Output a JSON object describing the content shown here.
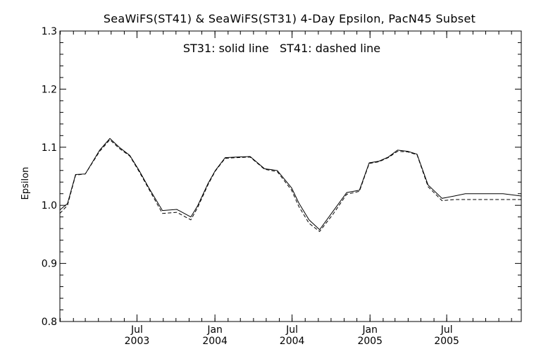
{
  "chart_data": {
    "type": "line",
    "title": "SeaWiFS(ST41) & SeaWiFS(ST31) 4-Day Epsilon, PacN45 Subset",
    "annotation": "ST31: solid line   ST41: dashed line",
    "xlabel": "",
    "ylabel": "Epsilon",
    "ylim": [
      0.8,
      1.3
    ],
    "yticks": [
      0.8,
      0.9,
      1.0,
      1.1,
      1.2,
      1.3
    ],
    "ytick_labels": [
      "0.8",
      "0.9",
      "1.0",
      "1.1",
      "1.2",
      "1.3"
    ],
    "xlim": [
      "2002-12-31",
      "2005-12-24"
    ],
    "xticks": [
      {
        "date": "2003-07-01",
        "month": "Jul",
        "year": "2003"
      },
      {
        "date": "2004-01-01",
        "month": "Jan",
        "year": "2004"
      },
      {
        "date": "2004-07-01",
        "month": "Jul",
        "year": "2004"
      },
      {
        "date": "2005-01-01",
        "month": "Jan",
        "year": "2005"
      },
      {
        "date": "2005-07-01",
        "month": "Jul",
        "year": "2005"
      }
    ],
    "grid": false,
    "colors": {
      "line": "#000000",
      "axis": "#000000",
      "background": "#ffffff"
    },
    "series": [
      {
        "name": "ST31",
        "style": "solid",
        "x": [
          "2002-12-31",
          "2003-01-18",
          "2003-02-06",
          "2003-03-01",
          "2003-04-04",
          "2003-04-28",
          "2003-05-20",
          "2003-06-14",
          "2003-07-06",
          "2003-07-29",
          "2003-08-30",
          "2003-10-03",
          "2003-11-05",
          "2003-11-21",
          "2003-12-16",
          "2004-01-02",
          "2004-01-25",
          "2004-02-21",
          "2004-03-24",
          "2004-04-27",
          "2004-05-27",
          "2004-06-30",
          "2004-07-17",
          "2004-08-10",
          "2004-09-04",
          "2004-10-06",
          "2004-11-07",
          "2004-12-07",
          "2004-12-30",
          "2005-01-22",
          "2005-02-13",
          "2005-03-07",
          "2005-03-31",
          "2005-04-22",
          "2005-05-18",
          "2005-06-20",
          "2005-07-19",
          "2005-08-14",
          "2005-09-16",
          "2005-10-13",
          "2005-11-11",
          "2005-12-24"
        ],
        "y": [
          0.992,
          1.003,
          1.053,
          1.054,
          1.095,
          1.115,
          1.1,
          1.086,
          1.06,
          1.03,
          0.991,
          0.993,
          0.98,
          0.999,
          1.038,
          1.06,
          1.082,
          1.083,
          1.084,
          1.063,
          1.06,
          1.03,
          1.004,
          0.975,
          0.958,
          0.99,
          1.022,
          1.026,
          1.073,
          1.076,
          1.083,
          1.095,
          1.093,
          1.088,
          1.035,
          1.012,
          1.016,
          1.02,
          1.02,
          1.02,
          1.02,
          1.016
        ]
      },
      {
        "name": "ST41",
        "style": "dashed",
        "x": [
          "2002-12-31",
          "2003-01-18",
          "2003-02-06",
          "2003-03-01",
          "2003-04-04",
          "2003-04-28",
          "2003-05-20",
          "2003-06-14",
          "2003-07-06",
          "2003-07-29",
          "2003-08-30",
          "2003-10-03",
          "2003-11-05",
          "2003-11-21",
          "2003-12-16",
          "2004-01-02",
          "2004-01-25",
          "2004-02-21",
          "2004-03-24",
          "2004-04-27",
          "2004-05-27",
          "2004-06-30",
          "2004-07-17",
          "2004-08-10",
          "2004-09-04",
          "2004-10-06",
          "2004-11-07",
          "2004-12-07",
          "2004-12-30",
          "2005-01-22",
          "2005-02-13",
          "2005-03-07",
          "2005-03-31",
          "2005-04-22",
          "2005-05-18",
          "2005-06-20",
          "2005-07-19",
          "2005-08-14",
          "2005-09-16",
          "2005-10-13",
          "2005-11-11",
          "2005-12-24"
        ],
        "y": [
          0.986,
          1.0,
          1.052,
          1.054,
          1.093,
          1.113,
          1.098,
          1.085,
          1.058,
          1.028,
          0.986,
          0.988,
          0.975,
          0.996,
          1.036,
          1.059,
          1.081,
          1.082,
          1.083,
          1.062,
          1.058,
          1.026,
          0.998,
          0.969,
          0.955,
          0.985,
          1.019,
          1.024,
          1.072,
          1.075,
          1.082,
          1.093,
          1.092,
          1.087,
          1.032,
          1.008,
          1.01,
          1.01,
          1.01,
          1.01,
          1.01,
          1.01
        ]
      }
    ]
  }
}
